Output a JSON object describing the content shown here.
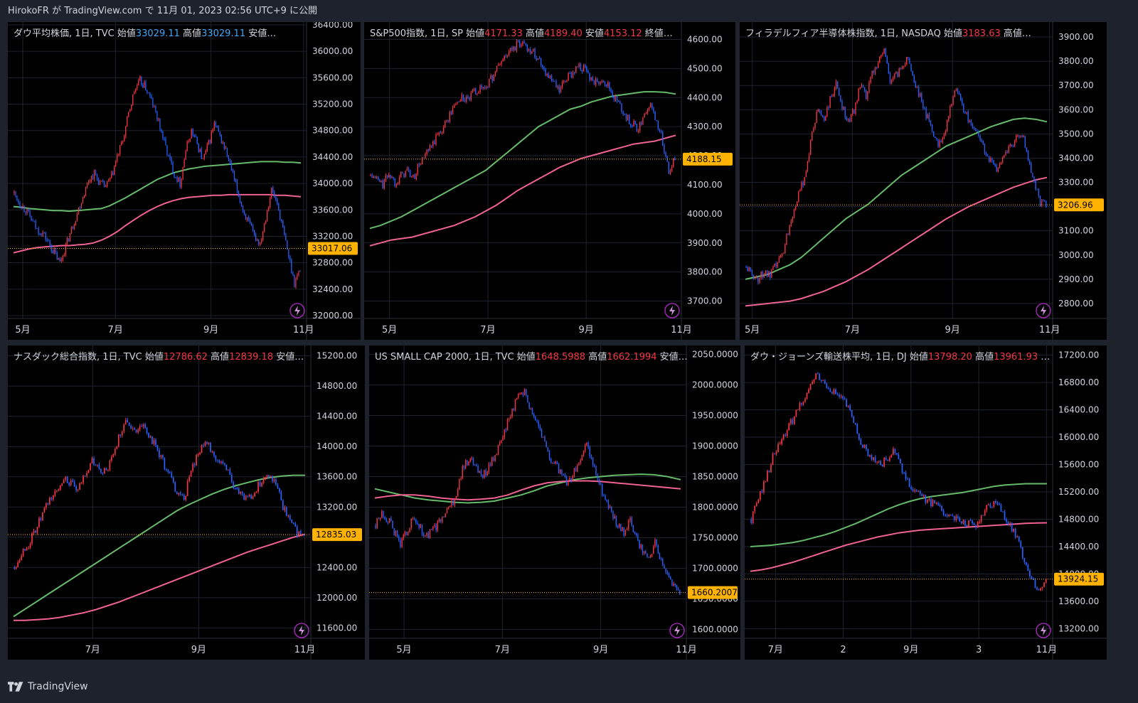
{
  "header": {
    "text": "HirokoFR が TradingView.com で 11月 01, 2023 02:56 UTC+9 に公開"
  },
  "footer": {
    "brand": "TradingView"
  },
  "colors": {
    "background": "#1e222d",
    "panel": "#000000",
    "up": "#f23645",
    "down": "#2962ff",
    "ma_green": "#66bb6a",
    "ma_pink": "#f06292",
    "last_price": "#ffb300",
    "ohlc_up": "#f23645",
    "ohlc_down": "#42a5f5",
    "grid": "#1e222d",
    "text": "#d1d4dc"
  },
  "chart_data": [
    {
      "type": "candlestick",
      "title_name": "ダウ平均株価, 1日, TVC",
      "ohlc_labels": [
        {
          "label": "始値",
          "value": "33029.11"
        },
        {
          "label": "高値",
          "value": "33029.11"
        }
      ],
      "ohlc_more": "安値…",
      "ohlc_color": "#42a5f5",
      "y_ticks": [
        32000,
        32400,
        32800,
        33200,
        33600,
        34000,
        34400,
        34800,
        35200,
        35600,
        36000,
        36400
      ],
      "y_tick_labels": [
        "32000.00",
        "32400.00",
        "32800.00",
        "33200.00",
        "33600.00",
        "34000.00",
        "34400.00",
        "34800.00",
        "35200.00",
        "35600.00",
        "36000.00",
        "36400.00"
      ],
      "ylim": [
        32000,
        36400
      ],
      "x_ticks": [
        {
          "label": "5月",
          "t": 0.05
        },
        {
          "label": "7月",
          "t": 0.36
        },
        {
          "label": "9月",
          "t": 0.68
        },
        {
          "label": "11月",
          "t": 0.99
        }
      ],
      "last_price": 33017.06,
      "last_price_label": "33017.06",
      "closes": [
        33850,
        33700,
        33600,
        33450,
        33300,
        33250,
        33100,
        32950,
        32800,
        33050,
        33300,
        33550,
        33800,
        34050,
        34150,
        34000,
        33950,
        34100,
        34400,
        34650,
        35050,
        35400,
        35550,
        35450,
        35250,
        35000,
        34700,
        34400,
        34150,
        34000,
        34500,
        34800,
        34600,
        34350,
        34600,
        34900,
        34700,
        34500,
        34200,
        33900,
        33600,
        33400,
        33200,
        33100,
        33500,
        33900,
        33700,
        33300,
        32900,
        32500,
        32700
      ],
      "ma_green": [
        33650,
        33640,
        33620,
        33610,
        33600,
        33590,
        33590,
        33580,
        33590,
        33600,
        33610,
        33620,
        33660,
        33720,
        33780,
        33850,
        33920,
        33990,
        34060,
        34110,
        34160,
        34190,
        34220,
        34240,
        34260,
        34270,
        34280,
        34290,
        34300,
        34310,
        34320,
        34330,
        34330,
        34330,
        34320,
        34320,
        34310
      ],
      "ma_pink": [
        32950,
        32980,
        33010,
        33030,
        33040,
        33050,
        33060,
        33060,
        33070,
        33080,
        33100,
        33140,
        33200,
        33270,
        33360,
        33440,
        33520,
        33590,
        33650,
        33700,
        33740,
        33770,
        33790,
        33800,
        33810,
        33820,
        33820,
        33830,
        33830,
        33830,
        33830,
        33830,
        33830,
        33820,
        33820,
        33810,
        33800
      ]
    },
    {
      "type": "candlestick",
      "title_name": "S&P500指数, 1日, SP",
      "ohlc_labels": [
        {
          "label": "始値",
          "value": "4171.33"
        },
        {
          "label": "高値",
          "value": "4189.40"
        },
        {
          "label": "安値",
          "value": "4153.12"
        }
      ],
      "ohlc_more": "終値…",
      "ohlc_color": "#f23645",
      "y_ticks": [
        3700,
        3800,
        3900,
        4000,
        4100,
        4200,
        4300,
        4400,
        4500,
        4600
      ],
      "y_tick_labels": [
        "3700.00",
        "3800.00",
        "3900.00",
        "4000.00",
        "4100.00",
        "4200.00",
        "4300.00",
        "4400.00",
        "4500.00",
        "4600.00"
      ],
      "ylim": [
        3650,
        4650
      ],
      "x_ticks": [
        {
          "label": "5月",
          "t": 0.08
        },
        {
          "label": "7月",
          "t": 0.39
        },
        {
          "label": "9月",
          "t": 0.7
        },
        {
          "label": "11月",
          "t": 1.0
        }
      ],
      "last_price": 4188.15,
      "last_price_label": "4188.15",
      "closes": [
        4130,
        4120,
        4100,
        4140,
        4110,
        4130,
        4150,
        4120,
        4170,
        4200,
        4230,
        4270,
        4300,
        4340,
        4380,
        4400,
        4390,
        4420,
        4430,
        4440,
        4470,
        4510,
        4540,
        4560,
        4580,
        4590,
        4570,
        4550,
        4520,
        4480,
        4450,
        4420,
        4460,
        4480,
        4510,
        4500,
        4470,
        4450,
        4470,
        4440,
        4400,
        4370,
        4330,
        4310,
        4290,
        4350,
        4370,
        4320,
        4250,
        4150,
        4190
      ],
      "ma_green": [
        3950,
        3960,
        3975,
        3990,
        4010,
        4030,
        4050,
        4070,
        4090,
        4110,
        4130,
        4150,
        4180,
        4210,
        4240,
        4270,
        4300,
        4320,
        4340,
        4360,
        4370,
        4385,
        4395,
        4405,
        4410,
        4415,
        4420,
        4420,
        4418,
        4412
      ],
      "ma_pink": [
        3890,
        3900,
        3910,
        3915,
        3920,
        3930,
        3940,
        3950,
        3960,
        3975,
        3990,
        4010,
        4030,
        4055,
        4080,
        4100,
        4120,
        4140,
        4160,
        4175,
        4190,
        4200,
        4210,
        4220,
        4230,
        4240,
        4245,
        4250,
        4260,
        4270
      ]
    },
    {
      "type": "candlestick",
      "title_name": "フィラデルフィア半導体株指数, 1日, NASDAQ",
      "ohlc_labels": [
        {
          "label": "始値",
          "value": "3183.63"
        }
      ],
      "ohlc_more": "高値…",
      "ohlc_color": "#f23645",
      "y_ticks": [
        2800,
        2900,
        3000,
        3100,
        3200,
        3300,
        3400,
        3500,
        3600,
        3700,
        3800,
        3900
      ],
      "y_tick_labels": [
        "2800.00",
        "2900.00",
        "3000.00",
        "3100.00",
        "3200.00",
        "3300.00",
        "3400.00",
        "3500.00",
        "3600.00",
        "3700.00",
        "3800.00",
        "3900.00"
      ],
      "ylim": [
        2750,
        3950
      ],
      "x_ticks": [
        {
          "label": "5月",
          "t": 0.04
        },
        {
          "label": "7月",
          "t": 0.36
        },
        {
          "label": "9月",
          "t": 0.68
        },
        {
          "label": "11月",
          "t": 0.99
        }
      ],
      "last_price": 3206.96,
      "last_price_label": "3206.96",
      "closes": [
        2950,
        2920,
        2900,
        2930,
        2910,
        2960,
        3000,
        3100,
        3200,
        3260,
        3350,
        3500,
        3600,
        3560,
        3640,
        3700,
        3620,
        3550,
        3600,
        3700,
        3650,
        3750,
        3800,
        3850,
        3720,
        3740,
        3780,
        3820,
        3720,
        3650,
        3580,
        3520,
        3460,
        3500,
        3600,
        3700,
        3620,
        3560,
        3520,
        3480,
        3420,
        3380,
        3350,
        3400,
        3450,
        3480,
        3500,
        3400,
        3300,
        3220,
        3200
      ],
      "ma_green": [
        2900,
        2910,
        2920,
        2940,
        2960,
        2990,
        3030,
        3070,
        3110,
        3150,
        3180,
        3210,
        3250,
        3290,
        3330,
        3360,
        3390,
        3420,
        3450,
        3470,
        3490,
        3510,
        3530,
        3545,
        3560,
        3565,
        3560,
        3550
      ],
      "ma_pink": [
        2790,
        2795,
        2800,
        2805,
        2810,
        2820,
        2835,
        2850,
        2870,
        2890,
        2915,
        2940,
        2970,
        3000,
        3030,
        3060,
        3090,
        3120,
        3150,
        3175,
        3200,
        3220,
        3240,
        3260,
        3280,
        3295,
        3310,
        3320
      ]
    },
    {
      "type": "candlestick",
      "title_name": "ナスダック総合指数, 1日, TVC",
      "ohlc_labels": [
        {
          "label": "始値",
          "value": "12786.62"
        },
        {
          "label": "高値",
          "value": "12839.18"
        }
      ],
      "ohlc_more": "安値…",
      "ohlc_color": "#f23645",
      "y_ticks": [
        11600,
        12000,
        12400,
        12800,
        13200,
        13600,
        14000,
        14400,
        14800,
        15200
      ],
      "y_tick_labels": [
        "11600.00",
        "12000.00",
        "12400.00",
        "12800.00",
        "13200.00",
        "13600.00",
        "14000.00",
        "14400.00",
        "14800.00",
        "15200.00"
      ],
      "ylim": [
        11500,
        15300
      ],
      "x_ticks": [
        {
          "label": "7月",
          "t": 0.28
        },
        {
          "label": "9月",
          "t": 0.63
        },
        {
          "label": "11月",
          "t": 0.98
        }
      ],
      "last_price": 12835.03,
      "last_price_label": "12835.03",
      "closes": [
        12400,
        12600,
        12700,
        12900,
        13100,
        13300,
        13400,
        13600,
        13500,
        13400,
        13650,
        13800,
        13700,
        13650,
        13900,
        14200,
        14350,
        14200,
        14300,
        14150,
        14000,
        13800,
        13600,
        13400,
        13300,
        13700,
        13900,
        14050,
        13950,
        13800,
        13700,
        13500,
        13350,
        13300,
        13400,
        13550,
        13650,
        13500,
        13200,
        13000,
        12850,
        12800
      ],
      "ma_green": [
        11750,
        11850,
        11950,
        12050,
        12150,
        12250,
        12350,
        12450,
        12550,
        12650,
        12750,
        12850,
        12950,
        13050,
        13150,
        13230,
        13300,
        13370,
        13430,
        13480,
        13520,
        13560,
        13590,
        13610,
        13620,
        13620
      ],
      "ma_pink": [
        11700,
        11700,
        11710,
        11720,
        11740,
        11770,
        11800,
        11840,
        11890,
        11940,
        12000,
        12060,
        12120,
        12180,
        12240,
        12300,
        12360,
        12420,
        12480,
        12540,
        12600,
        12650,
        12700,
        12750,
        12800,
        12840
      ]
    },
    {
      "type": "candlestick",
      "title_name": "US SMALL CAP 2000, 1日, TVC",
      "ohlc_labels": [
        {
          "label": "始値",
          "value": "1648.5988"
        },
        {
          "label": "高値",
          "value": "1662.1994"
        }
      ],
      "ohlc_more": "安値…",
      "ohlc_color": "#f23645",
      "y_ticks": [
        1600,
        1650,
        1700,
        1750,
        1800,
        1850,
        1900,
        1950,
        2000,
        2050
      ],
      "y_tick_labels": [
        "1600.0000",
        "1650.0000",
        "1700.0000",
        "1750.0000",
        "1800.0000",
        "1850.0000",
        "1900.0000",
        "1950.0000",
        "2000.0000",
        "2050.0000"
      ],
      "ylim": [
        1590,
        2060
      ],
      "x_ticks": [
        {
          "label": "5月",
          "t": 0.11
        },
        {
          "label": "7月",
          "t": 0.42
        },
        {
          "label": "9月",
          "t": 0.73
        },
        {
          "label": "11月",
          "t": 1.0
        }
      ],
      "last_price": 1660.2007,
      "last_price_label": "1660.2007",
      "closes": [
        1770,
        1790,
        1780,
        1760,
        1740,
        1760,
        1780,
        1770,
        1750,
        1760,
        1770,
        1790,
        1800,
        1820,
        1860,
        1880,
        1870,
        1850,
        1860,
        1880,
        1900,
        1930,
        1960,
        1980,
        1990,
        1960,
        1940,
        1910,
        1880,
        1870,
        1850,
        1840,
        1860,
        1880,
        1900,
        1870,
        1840,
        1810,
        1790,
        1770,
        1760,
        1780,
        1750,
        1730,
        1720,
        1740,
        1710,
        1690,
        1670,
        1660
      ],
      "ma_green": [
        1830,
        1825,
        1820,
        1815,
        1812,
        1810,
        1808,
        1807,
        1808,
        1810,
        1815,
        1820,
        1827,
        1835,
        1840,
        1845,
        1848,
        1850,
        1852,
        1853,
        1854,
        1853,
        1850,
        1845
      ],
      "ma_pink": [
        1815,
        1818,
        1820,
        1820,
        1818,
        1815,
        1813,
        1812,
        1813,
        1815,
        1820,
        1828,
        1835,
        1840,
        1842,
        1843,
        1843,
        1842,
        1840,
        1838,
        1836,
        1834,
        1832,
        1830
      ]
    },
    {
      "type": "candlestick",
      "title_name": "ダウ・ジョーンズ輸送株平均, 1日, DJ",
      "ohlc_labels": [
        {
          "label": "始値",
          "value": "13798.20"
        },
        {
          "label": "高値",
          "value": "13961.93"
        }
      ],
      "ohlc_more": "…",
      "ohlc_color": "#f23645",
      "y_ticks": [
        13200,
        13600,
        14000,
        14400,
        14800,
        15200,
        15600,
        16000,
        16400,
        16800,
        17200
      ],
      "y_tick_labels": [
        "13200.00",
        "13600.00",
        "14000.00",
        "14400.00",
        "14800.00",
        "15200.00",
        "15600.00",
        "16000.00",
        "16400.00",
        "16800.00",
        "17200.00"
      ],
      "ylim": [
        13100,
        17300
      ],
      "x_ticks": [
        {
          "label": "7月",
          "t": 0.1
        },
        {
          "label": "2",
          "t": 0.32
        },
        {
          "label": "9月",
          "t": 0.54
        },
        {
          "label": "3",
          "t": 0.76
        },
        {
          "label": "11月",
          "t": 0.98
        }
      ],
      "last_price": 13924.15,
      "last_price_label": "13924.15",
      "closes": [
        14800,
        15100,
        15400,
        15700,
        15900,
        16100,
        16300,
        16500,
        16700,
        16900,
        16800,
        16700,
        16600,
        16500,
        16300,
        16000,
        15800,
        15700,
        15600,
        15700,
        15800,
        15500,
        15300,
        15200,
        15100,
        15050,
        15000,
        14900,
        14850,
        14800,
        14750,
        14700,
        14850,
        15000,
        15050,
        14900,
        14700,
        14500,
        14200,
        13900,
        13700,
        13900
      ],
      "ma_green": [
        14400,
        14410,
        14420,
        14440,
        14460,
        14490,
        14530,
        14570,
        14620,
        14680,
        14740,
        14810,
        14880,
        14950,
        15010,
        15060,
        15100,
        15130,
        15150,
        15170,
        15190,
        15220,
        15250,
        15280,
        15300,
        15310,
        15320,
        15320,
        15320
      ],
      "ma_pink": [
        14040,
        14060,
        14090,
        14130,
        14170,
        14220,
        14270,
        14320,
        14370,
        14420,
        14460,
        14500,
        14540,
        14570,
        14600,
        14620,
        14640,
        14650,
        14660,
        14670,
        14680,
        14690,
        14700,
        14710,
        14720,
        14730,
        14740,
        14745,
        14748
      ]
    }
  ]
}
